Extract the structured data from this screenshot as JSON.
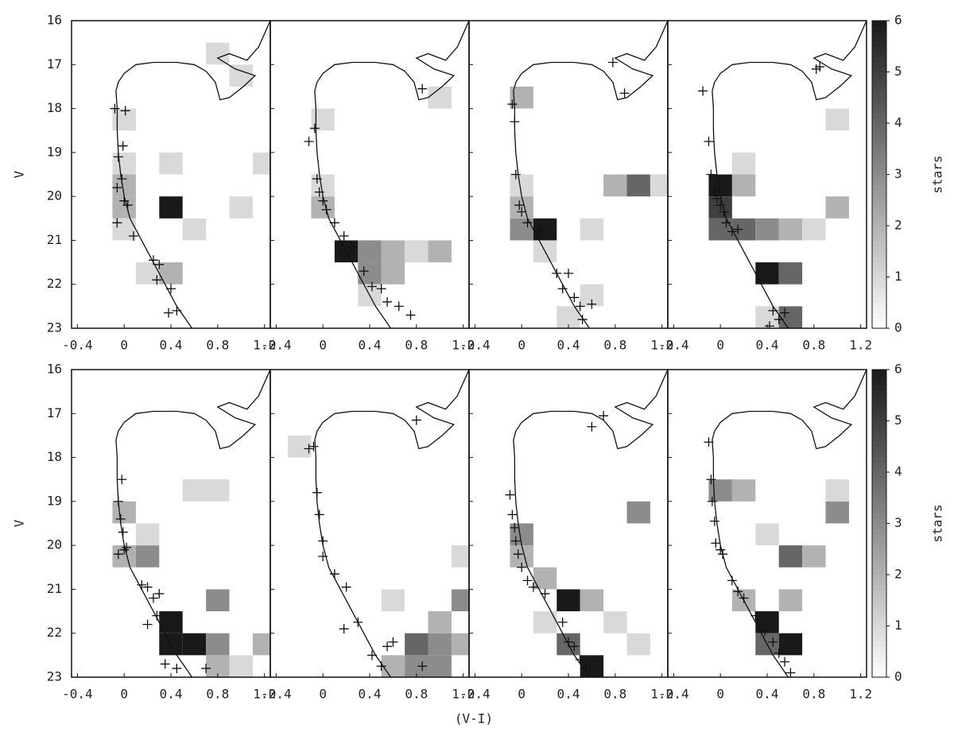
{
  "axes": {
    "xlim": [
      -0.45,
      1.25
    ],
    "xticks": [
      -0.4,
      0,
      0.4,
      0.8,
      1.2
    ],
    "ylim": [
      16,
      23
    ],
    "yticks": [
      16,
      17,
      18,
      19,
      20,
      21,
      22,
      23
    ],
    "y_inverted": true,
    "xlabel": "(V-I)",
    "ylabel": "V"
  },
  "colorbar": {
    "label": "stars",
    "lim": [
      0,
      6
    ],
    "ticks": [
      0,
      1,
      2,
      3,
      4,
      5,
      6
    ]
  },
  "isochrone": {
    "x": [
      0.58,
      0.45,
      0.35,
      0.25,
      0.15,
      0.05,
      0.0,
      -0.03,
      -0.05,
      -0.06,
      -0.06,
      -0.07,
      -0.05,
      0.0,
      0.1,
      0.25,
      0.45,
      0.6,
      0.7,
      0.78,
      0.82,
      0.9,
      1.02,
      1.12,
      0.95,
      0.8,
      0.9,
      1.05,
      1.15,
      1.25
    ],
    "y": [
      23,
      22.5,
      22,
      21.5,
      21,
      20.5,
      20,
      19.5,
      19,
      18.5,
      18,
      17.6,
      17.4,
      17.2,
      17.0,
      16.95,
      16.95,
      17.0,
      17.15,
      17.4,
      17.8,
      17.75,
      17.5,
      17.25,
      17.1,
      16.85,
      16.75,
      16.9,
      16.6,
      16.0
    ]
  },
  "chart_data": [
    {
      "type": "hess",
      "cell_x": [
        -0.1,
        -0.1,
        -0.1,
        -0.1,
        -0.1,
        0.3,
        0.1,
        0.3,
        0.5,
        0.3,
        0.9,
        1.1,
        0.7,
        0.9
      ],
      "cell_y": [
        19.5,
        20.0,
        20.5,
        19.0,
        18.0,
        20.0,
        21.5,
        21.5,
        20.5,
        19.0,
        20.0,
        19.0,
        16.5,
        17.0
      ],
      "counts": [
        2,
        2,
        1,
        1,
        1,
        6,
        1,
        2,
        1,
        1,
        1,
        1,
        1,
        1
      ],
      "stars_x": [
        -0.08,
        -0.01,
        -0.05,
        -0.02,
        -0.06,
        0.0,
        0.03,
        0.08,
        0.25,
        0.3,
        0.28,
        0.4,
        0.38,
        0.45,
        -0.06,
        0.01
      ],
      "stars_y": [
        18.0,
        18.85,
        19.1,
        19.6,
        19.8,
        20.1,
        20.2,
        20.9,
        21.45,
        21.55,
        21.9,
        22.1,
        22.65,
        22.6,
        20.6,
        18.05
      ]
    },
    {
      "type": "hess",
      "cell_x": [
        0.1,
        0.3,
        0.5,
        0.7,
        0.9,
        0.3,
        0.5,
        -0.1,
        -0.1,
        -0.1,
        0.3,
        0.9
      ],
      "cell_y": [
        21.0,
        21.0,
        21.0,
        21.0,
        21.0,
        21.5,
        21.5,
        20.0,
        19.5,
        18.0,
        22.0,
        17.5
      ],
      "counts": [
        6,
        3,
        2,
        1,
        2,
        3,
        2,
        2,
        1,
        1,
        1,
        1
      ],
      "stars_x": [
        -0.12,
        -0.07,
        -0.05,
        -0.03,
        0.0,
        0.03,
        0.1,
        0.18,
        0.25,
        0.35,
        0.42,
        0.5,
        0.55,
        0.65,
        0.75,
        0.85
      ],
      "stars_y": [
        18.75,
        18.45,
        19.6,
        19.9,
        20.1,
        20.3,
        20.6,
        20.9,
        21.15,
        21.7,
        22.05,
        22.1,
        22.4,
        22.5,
        22.7,
        17.55
      ]
    },
    {
      "type": "hess",
      "cell_x": [
        0.1,
        -0.1,
        -0.1,
        -0.1,
        -0.1,
        0.1,
        0.5,
        0.9,
        0.7,
        1.1,
        0.3,
        0.5
      ],
      "cell_y": [
        20.5,
        20.5,
        20.0,
        17.5,
        19.5,
        21.0,
        20.5,
        19.5,
        19.5,
        19.5,
        22.5,
        22.0
      ],
      "counts": [
        6,
        3,
        2,
        2,
        1,
        1,
        1,
        4,
        2,
        1,
        1,
        1
      ],
      "stars_x": [
        -0.08,
        -0.06,
        -0.05,
        -0.02,
        0.0,
        0.05,
        0.15,
        0.3,
        0.35,
        0.4,
        0.45,
        0.5,
        0.52,
        0.6,
        0.78,
        0.88
      ],
      "stars_y": [
        17.9,
        18.3,
        19.5,
        20.2,
        20.35,
        20.6,
        20.8,
        21.75,
        22.1,
        21.75,
        22.3,
        22.5,
        22.8,
        22.45,
        16.95,
        17.65
      ]
    },
    {
      "type": "hess",
      "cell_x": [
        -0.1,
        -0.1,
        -0.1,
        0.1,
        0.3,
        0.5,
        0.7,
        0.9,
        0.1,
        0.3,
        0.5,
        0.3,
        0.5,
        0.1,
        0.9
      ],
      "cell_y": [
        19.5,
        20.0,
        20.5,
        20.5,
        20.5,
        20.5,
        20.5,
        20.0,
        19.5,
        21.5,
        21.5,
        22.5,
        22.5,
        19.0,
        18.0
      ],
      "counts": [
        6,
        5,
        4,
        4,
        3,
        2,
        1,
        2,
        2,
        6,
        4,
        1,
        4,
        1,
        1
      ],
      "stars_x": [
        -0.15,
        -0.1,
        -0.08,
        -0.05,
        -0.03,
        0.0,
        0.03,
        0.05,
        0.1,
        0.15,
        0.45,
        0.5,
        0.55,
        0.42,
        0.85,
        0.82
      ],
      "stars_y": [
        17.6,
        18.75,
        19.5,
        19.9,
        20.05,
        20.2,
        20.35,
        20.6,
        20.8,
        20.75,
        22.6,
        22.8,
        22.65,
        22.95,
        17.05,
        17.1
      ]
    },
    {
      "type": "hess",
      "cell_x": [
        0.3,
        0.3,
        0.5,
        -0.1,
        0.1,
        -0.1,
        0.7,
        0.7,
        0.7,
        1.1,
        0.9,
        0.1,
        0.5,
        0.7
      ],
      "cell_y": [
        21.5,
        22.0,
        22.0,
        20.0,
        20.0,
        19.0,
        22.0,
        21.0,
        22.5,
        22.0,
        22.5,
        19.5,
        18.5,
        18.5
      ],
      "counts": [
        6,
        6,
        6,
        2,
        3,
        2,
        3,
        3,
        2,
        2,
        1,
        1,
        1,
        1
      ],
      "stars_x": [
        -0.02,
        -0.05,
        -0.03,
        -0.01,
        0.0,
        -0.05,
        0.02,
        0.15,
        0.2,
        0.25,
        0.3,
        0.28,
        0.2,
        0.35,
        0.45,
        0.7
      ],
      "stars_y": [
        18.5,
        19.0,
        19.4,
        19.7,
        20.1,
        20.2,
        20.05,
        20.9,
        20.95,
        21.2,
        21.1,
        21.6,
        21.8,
        22.7,
        22.8,
        22.8
      ]
    },
    {
      "type": "hess",
      "cell_x": [
        0.7,
        0.7,
        0.9,
        0.9,
        1.1,
        1.1,
        0.9,
        1.1,
        0.5,
        0.5,
        -0.3
      ],
      "cell_y": [
        22.0,
        22.5,
        22.0,
        22.5,
        22.0,
        21.0,
        21.5,
        20.0,
        22.5,
        21.0,
        17.5
      ],
      "counts": [
        4,
        3,
        3,
        3,
        2,
        3,
        2,
        1,
        2,
        1,
        1
      ],
      "stars_x": [
        -0.12,
        -0.08,
        -0.05,
        -0.03,
        0.0,
        0.0,
        0.1,
        0.2,
        0.3,
        0.42,
        0.5,
        0.55,
        0.6,
        0.85,
        0.8,
        0.18
      ],
      "stars_y": [
        17.8,
        17.75,
        18.8,
        19.3,
        19.9,
        20.25,
        20.65,
        20.95,
        21.75,
        22.5,
        22.75,
        22.3,
        22.2,
        22.75,
        17.15,
        21.9
      ]
    },
    {
      "type": "hess",
      "cell_x": [
        0.3,
        0.5,
        0.3,
        -0.1,
        -0.1,
        0.1,
        0.5,
        0.9,
        0.7,
        0.1,
        0.9
      ],
      "cell_y": [
        21.0,
        22.5,
        22.0,
        19.5,
        20.0,
        20.5,
        21.0,
        19.0,
        21.5,
        21.5,
        22.0
      ],
      "counts": [
        6,
        6,
        4,
        3,
        2,
        2,
        2,
        3,
        1,
        1,
        1
      ],
      "stars_x": [
        -0.1,
        -0.08,
        -0.06,
        -0.05,
        -0.03,
        0.0,
        0.05,
        0.1,
        0.2,
        0.35,
        0.4,
        0.45,
        0.5,
        0.55,
        0.7,
        0.6
      ],
      "stars_y": [
        18.85,
        19.3,
        19.6,
        19.9,
        20.2,
        20.5,
        20.8,
        20.95,
        21.1,
        21.75,
        22.2,
        22.3,
        22.6,
        22.8,
        17.05,
        17.3
      ]
    },
    {
      "type": "hess",
      "cell_x": [
        0.3,
        0.5,
        0.3,
        -0.1,
        0.1,
        0.5,
        0.9,
        0.1,
        0.5,
        0.7,
        0.9,
        0.3
      ],
      "cell_y": [
        21.5,
        22.0,
        22.0,
        18.5,
        18.5,
        20.0,
        19.0,
        21.0,
        21.0,
        20.0,
        18.5,
        19.5
      ],
      "counts": [
        6,
        6,
        4,
        3,
        2,
        4,
        3,
        2,
        2,
        2,
        1,
        1
      ],
      "stars_x": [
        -0.1,
        -0.08,
        -0.07,
        -0.05,
        -0.04,
        0.0,
        0.02,
        0.1,
        0.15,
        0.2,
        0.3,
        0.38,
        0.45,
        0.5,
        0.55,
        0.6
      ],
      "stars_y": [
        17.65,
        18.5,
        19.0,
        19.45,
        19.95,
        20.1,
        20.2,
        20.8,
        21.05,
        21.2,
        21.6,
        21.95,
        22.2,
        22.45,
        22.65,
        22.9
      ]
    }
  ]
}
